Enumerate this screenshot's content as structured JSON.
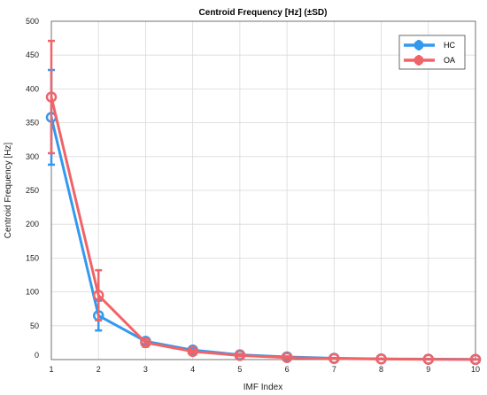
{
  "chart_data": {
    "type": "line",
    "title": "Centroid Frequency [Hz] (±SD)",
    "xlabel": "IMF Index",
    "ylabel": "Centroid Frequency [Hz]",
    "xlim": [
      1,
      10
    ],
    "ylim": [
      0,
      500
    ],
    "xticks": [
      "1",
      "2",
      "3",
      "4",
      "5",
      "6",
      "7",
      "8",
      "9",
      "10"
    ],
    "yticks": [
      "0",
      "50",
      "100",
      "150",
      "200",
      "250",
      "300",
      "350",
      "400",
      "450",
      "500"
    ],
    "grid": true,
    "legend_position": "top-right",
    "x": [
      1,
      2,
      3,
      4,
      5,
      6,
      7,
      8,
      9,
      10
    ],
    "series": [
      {
        "name": "HC",
        "color": "#3399ee",
        "values": [
          358,
          65,
          27,
          14,
          7,
          4,
          2,
          1,
          0.6,
          0.3
        ],
        "sd": [
          70,
          22,
          4,
          2,
          1,
          0.6,
          0.3,
          0.2,
          0.1,
          0.1
        ]
      },
      {
        "name": "OA",
        "color": "#f06468",
        "values": [
          388,
          95,
          25,
          12,
          6,
          3,
          1.5,
          0.8,
          0.4,
          0.2
        ],
        "sd": [
          83,
          37,
          6,
          2,
          1,
          0.5,
          0.3,
          0.2,
          0.1,
          0.1
        ]
      }
    ]
  }
}
